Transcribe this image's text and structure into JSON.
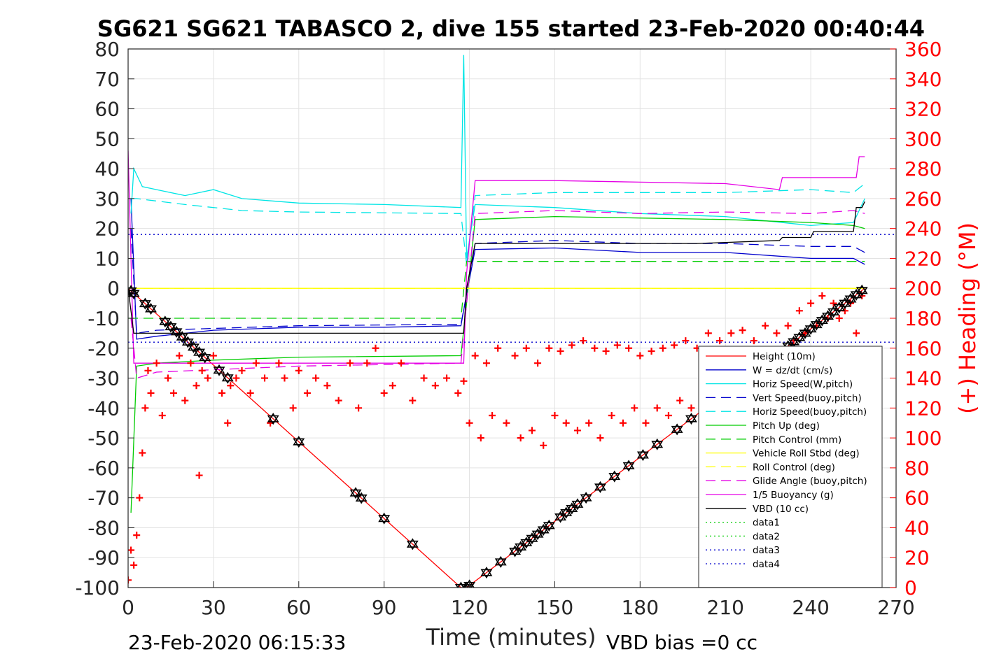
{
  "chart_data": {
    "type": "line",
    "title": "SG621 SG621 TABASCO 2, dive 155 started 23-Feb-2020 00:40:44",
    "xlabel": "Time (minutes)",
    "ylabel_left": "",
    "ylabel_right": "(+) Heading (°M)",
    "xlim": [
      0,
      270
    ],
    "ylim": [
      -100,
      80
    ],
    "ylim_right": [
      0,
      360
    ],
    "x_ticks": [
      "0",
      "30",
      "60",
      "90",
      "120",
      "150",
      "180",
      "210",
      "240",
      "270"
    ],
    "y_ticks": [
      "80",
      "70",
      "60",
      "50",
      "40",
      "30",
      "20",
      "10",
      "0",
      "-10",
      "-20",
      "-30",
      "-40",
      "-50",
      "-60",
      "-70",
      "-80",
      "-90",
      "-100"
    ],
    "y_ticks_right": [
      "360",
      "340",
      "320",
      "300",
      "280",
      "260",
      "240",
      "220",
      "200",
      "180",
      "160",
      "140",
      "120",
      "100",
      "80",
      "60",
      "40",
      "20",
      "0"
    ],
    "grid": true,
    "legend_position": "bottom-right",
    "footer_left": "23-Feb-2020 06:15:33",
    "footer_right": "VBD bias =0 cc",
    "series": [
      {
        "name": "Height (10m)",
        "color": "#ff0000",
        "style": "solid",
        "x": [
          0,
          117,
          119,
          259
        ],
        "y": [
          0,
          -100,
          -100,
          0
        ]
      },
      {
        "name": "W = dz/dt (cm/s)",
        "color": "#0000cc",
        "style": "solid",
        "x": [
          1,
          3,
          10,
          30,
          60,
          90,
          117,
          119,
          122,
          150,
          180,
          210,
          240,
          255,
          259
        ],
        "y": [
          30,
          -17,
          -16,
          -14,
          -13,
          -13,
          -12.5,
          -2,
          13,
          13.5,
          12,
          12,
          10,
          10,
          8
        ]
      },
      {
        "name": "Horiz Speed(W,pitch)",
        "color": "#00e5e5",
        "style": "solid",
        "x": [
          1,
          2,
          5,
          10,
          20,
          30,
          40,
          60,
          90,
          117,
          118,
          119,
          122,
          150,
          180,
          210,
          240,
          255,
          259
        ],
        "y": [
          25,
          40,
          34,
          33,
          31,
          33,
          30,
          28.5,
          28,
          27,
          78,
          10,
          28,
          27,
          25,
          24,
          21,
          22,
          30
        ]
      },
      {
        "name": "Vert Speed(buoy,pitch)",
        "color": "#0000cc",
        "style": "dashed",
        "x": [
          1,
          3,
          10,
          60,
          117,
          119,
          122,
          150,
          180,
          210,
          240,
          255,
          259
        ],
        "y": [
          20,
          -15,
          -14,
          -12.5,
          -12,
          -2,
          15,
          16,
          15,
          15,
          14,
          14,
          12
        ]
      },
      {
        "name": "Horiz Speed(buoy,pitch)",
        "color": "#00e5e5",
        "style": "dashed",
        "x": [
          1,
          3,
          20,
          40,
          60,
          117,
          119,
          122,
          150,
          180,
          210,
          240,
          255,
          259
        ],
        "y": [
          30,
          30,
          28,
          26,
          25.5,
          25,
          8,
          31,
          32,
          32,
          32,
          33,
          32,
          35
        ]
      },
      {
        "name": "Pitch Up (deg)",
        "color": "#00cc00",
        "style": "solid",
        "x": [
          1,
          3,
          10,
          30,
          60,
          117,
          119,
          122,
          150,
          180,
          210,
          240,
          255,
          259
        ],
        "y": [
          -75,
          -26,
          -25,
          -24,
          -23,
          -22.5,
          -5,
          23,
          24,
          23.5,
          23,
          22,
          21,
          20
        ]
      },
      {
        "name": "Pitch Control (mm)",
        "color": "#00cc00",
        "style": "dashed",
        "x": [
          0,
          117,
          119,
          259
        ],
        "y": [
          -10,
          -10,
          9,
          9
        ]
      },
      {
        "name": "Vehicle Roll Stbd (deg)",
        "color": "#ffff00",
        "style": "solid",
        "x": [
          0,
          117,
          119,
          259
        ],
        "y": [
          0,
          0,
          0,
          0
        ]
      },
      {
        "name": "Roll Control (deg)",
        "color": "#ffff00",
        "style": "dashed",
        "x": [
          0,
          259
        ],
        "y": [
          0,
          0
        ]
      },
      {
        "name": "Glide Angle (buoy,pitch)",
        "color": "#e500e5",
        "style": "dashed",
        "x": [
          1,
          3,
          10,
          60,
          117,
          119,
          122,
          150,
          180,
          210,
          240,
          255,
          259
        ],
        "y": [
          -10,
          -30,
          -28,
          -26,
          -25,
          -5,
          25,
          26,
          25,
          25.5,
          25,
          26,
          25
        ]
      },
      {
        "name": "1/5 Buoyancy (g)",
        "color": "#e500e5",
        "style": "solid",
        "x": [
          0,
          2,
          117,
          118,
          119,
          122,
          150,
          180,
          210,
          229,
          230,
          256,
          257,
          259
        ],
        "y": [
          46,
          -25,
          -25,
          -25,
          5,
          36,
          36,
          35.5,
          35,
          33,
          37,
          37,
          44,
          44
        ]
      },
      {
        "name": "VBD (10 cc)",
        "color": "#000000",
        "style": "solid",
        "x": [
          0,
          2,
          117,
          118,
          119,
          122,
          200,
          229,
          230,
          240,
          241,
          255,
          256,
          258,
          259
        ],
        "y": [
          0,
          -15,
          -15,
          -15,
          0,
          15,
          15,
          16,
          17,
          17,
          19,
          19,
          27,
          27,
          29
        ]
      },
      {
        "name": "data1",
        "color": "#00cc00",
        "style": "dotted",
        "x": [],
        "y": []
      },
      {
        "name": "data2",
        "color": "#00cc00",
        "style": "dotted",
        "x": [],
        "y": []
      },
      {
        "name": "data3",
        "color": "#0000cc",
        "style": "dotted",
        "x": [
          0,
          270
        ],
        "y": [
          18,
          18
        ]
      },
      {
        "name": "data4",
        "color": "#0000cc",
        "style": "dotted",
        "x": [
          0,
          270
        ],
        "y": [
          -18,
          -18
        ]
      }
    ],
    "vbd_pump_markers": {
      "marker": "triangle-down-and-up",
      "color": "#000000",
      "x": [
        1,
        2,
        6,
        8,
        13,
        15,
        17,
        19,
        21,
        23,
        25,
        27,
        32,
        35,
        51,
        60,
        80,
        82,
        90,
        100,
        117,
        119,
        120,
        126,
        131,
        136,
        138,
        140,
        142,
        144,
        146,
        148,
        152,
        154,
        156,
        158,
        161,
        166,
        171,
        176,
        181,
        186,
        193,
        198,
        232,
        234,
        236,
        238,
        240,
        242,
        244,
        246,
        248,
        250,
        252,
        254,
        256,
        258
      ]
    },
    "heading": {
      "marker": "+",
      "color": "#ff0000",
      "axis": "right",
      "x": [
        0,
        1,
        2,
        3,
        4,
        5,
        6,
        7,
        8,
        10,
        12,
        14,
        16,
        18,
        20,
        22,
        24,
        25,
        26,
        28,
        30,
        33,
        35,
        36,
        38,
        40,
        43,
        45,
        48,
        50,
        53,
        55,
        58,
        60,
        63,
        66,
        70,
        74,
        78,
        81,
        84,
        87,
        90,
        93,
        96,
        100,
        104,
        108,
        112,
        116,
        118,
        120,
        122,
        124,
        126,
        128,
        130,
        133,
        136,
        138,
        140,
        142,
        144,
        146,
        148,
        150,
        152,
        154,
        156,
        158,
        160,
        162,
        164,
        166,
        168,
        170,
        172,
        174,
        176,
        178,
        180,
        182,
        184,
        186,
        188,
        190,
        192,
        194,
        196,
        198,
        200,
        202,
        204,
        206,
        208,
        210,
        212,
        214,
        216,
        218,
        220,
        222,
        224,
        226,
        228,
        230,
        232,
        234,
        236,
        238,
        240,
        242,
        244,
        246,
        248,
        250,
        252,
        254,
        256,
        258
      ],
      "y": [
        5,
        25,
        15,
        35,
        60,
        90,
        120,
        145,
        130,
        150,
        115,
        140,
        130,
        155,
        125,
        150,
        135,
        75,
        145,
        140,
        155,
        130,
        110,
        135,
        140,
        145,
        130,
        150,
        140,
        110,
        150,
        140,
        120,
        145,
        130,
        140,
        135,
        125,
        150,
        120,
        150,
        160,
        130,
        135,
        150,
        125,
        140,
        135,
        140,
        130,
        138,
        110,
        155,
        100,
        150,
        115,
        160,
        110,
        155,
        100,
        160,
        105,
        150,
        95,
        160,
        115,
        158,
        110,
        162,
        105,
        165,
        110,
        160,
        100,
        158,
        115,
        162,
        110,
        160,
        120,
        155,
        110,
        158,
        120,
        160,
        115,
        162,
        125,
        165,
        120,
        160,
        130,
        170,
        140,
        165,
        135,
        170,
        140,
        172,
        145,
        165,
        150,
        175,
        150,
        170,
        155,
        175,
        165,
        185,
        170,
        190,
        175,
        195,
        180,
        190,
        180,
        185,
        190,
        170,
        195
      ]
    }
  }
}
